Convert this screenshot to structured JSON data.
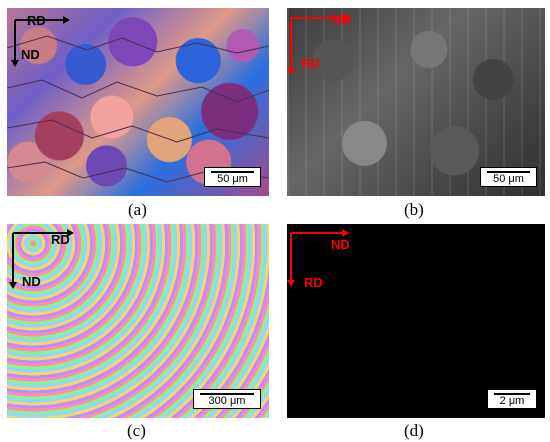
{
  "panels": {
    "a": {
      "caption": "(a)",
      "scale_label": "50 μm",
      "axis_horizontal": "RD",
      "axis_vertical": "ND"
    },
    "b": {
      "caption": "(b)",
      "scale_label": "50 μm",
      "axis_horizontal": "ND",
      "axis_vertical": "RD"
    },
    "c": {
      "caption": "(c)",
      "scale_label": "300 μm",
      "axis_horizontal": "RD",
      "axis_vertical": "ND"
    },
    "d": {
      "caption": "(d)",
      "scale_label": "2 μm",
      "axis_horizontal": "ND",
      "axis_vertical": "RD"
    }
  },
  "colors": {
    "black_axis": "#000000",
    "red_axis": "#ff0000"
  }
}
